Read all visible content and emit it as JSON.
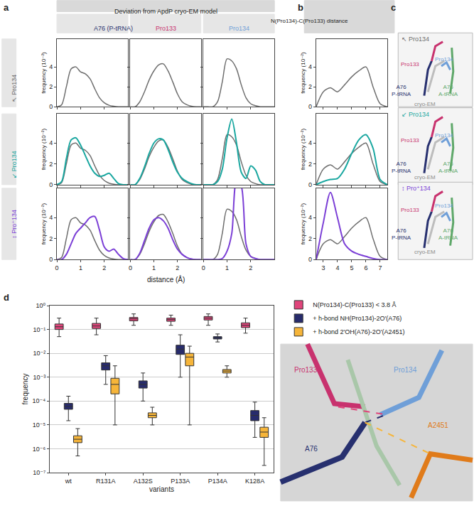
{
  "chart_data": [
    {
      "type": "line",
      "label": "a",
      "title": "Deviation from ApdP cryo-EM model",
      "x_label": "distance (Å)",
      "y_label": "frequency (10⁻²)",
      "xlim": [
        0,
        3
      ],
      "xticks": [
        0,
        1,
        2
      ],
      "ylim": [
        0,
        6.8
      ],
      "yticks": [
        0,
        2,
        4
      ],
      "rows": [
        {
          "label": "↖ Pro134",
          "color": "#6e6e6e"
        },
        {
          "label": "↙ Pro134",
          "color": "#1aa7a0"
        },
        {
          "label": "↕ Pro⁺134",
          "color": "#7b3fd6"
        }
      ],
      "x": [
        0,
        0.2,
        0.4,
        0.6,
        0.8,
        1.0,
        1.2,
        1.4,
        1.6,
        1.8,
        2.0,
        2.2,
        2.4,
        2.6,
        2.8,
        3.0
      ],
      "columns": [
        {
          "title": "A76 (P-tRNA)",
          "color": "#27306f",
          "series": [
            {
              "values": [
                0,
                0.2,
                2.0,
                3.8,
                4.0,
                3.5,
                3.3,
                2.8,
                1.8,
                0.9,
                0.4,
                0.15,
                0.05,
                0,
                0,
                0
              ]
            },
            {
              "values": [
                0,
                0.3,
                2.5,
                4.3,
                4.5,
                3.8,
                2.8,
                1.8,
                1.1,
                0.8,
                0.9,
                1.1,
                0.6,
                0.1,
                0,
                0
              ]
            },
            {
              "values": [
                0,
                0,
                0.5,
                1.5,
                2.5,
                3.0,
                3.5,
                4.0,
                4.1,
                2.8,
                1.2,
                0.8,
                1.0,
                0.5,
                0.1,
                0
              ]
            }
          ]
        },
        {
          "title": "Pro133",
          "color": "#c8326e",
          "series": [
            {
              "values": [
                0,
                0,
                0.5,
                1.5,
                2.7,
                3.6,
                4.2,
                4.3,
                3.6,
                2.5,
                1.3,
                0.5,
                0.2,
                0.05,
                0,
                0
              ]
            },
            {
              "values": [
                0,
                0,
                0.6,
                1.7,
                3.0,
                4.0,
                4.4,
                4.3,
                3.4,
                2.2,
                1.2,
                0.6,
                0.3,
                0.1,
                0,
                0
              ]
            },
            {
              "values": [
                0,
                0,
                0.6,
                1.8,
                3.0,
                3.8,
                4.0,
                3.7,
                3.0,
                1.9,
                1.0,
                0.5,
                0.2,
                0.05,
                0,
                0
              ]
            }
          ]
        },
        {
          "title": "Pro134",
          "color": "#6f9fd8",
          "series": [
            {
              "values": [
                0,
                0,
                0,
                0.5,
                2.5,
                4.8,
                4.6,
                3.8,
                2.2,
                0.9,
                0.3,
                0.1,
                0,
                0,
                0,
                0
              ]
            },
            {
              "values": [
                0,
                0,
                0,
                0.3,
                1.5,
                4.5,
                6.3,
                4.0,
                1.2,
                0.6,
                1.8,
                1.4,
                0.3,
                0,
                0,
                0
              ]
            },
            {
              "values": [
                0,
                0,
                0,
                0,
                0.1,
                0.8,
                2.5,
                7.5,
                7.0,
                1.5,
                0.3,
                0.1,
                0,
                0,
                0,
                0
              ]
            }
          ]
        }
      ]
    },
    {
      "type": "line",
      "label": "b",
      "title": "N(Pro134)-C(Pro133) distance",
      "y_label": "frequency (10⁻²)",
      "xlim": [
        2.5,
        7.5
      ],
      "xticks": [
        3,
        4,
        5,
        6,
        7
      ],
      "ylim": [
        0,
        6.8
      ],
      "yticks": [
        0,
        2,
        4
      ],
      "x": [
        2.5,
        3,
        3.5,
        4,
        4.5,
        5,
        5.5,
        6,
        6.5,
        7,
        7.5
      ],
      "series": [
        {
          "color": "#6e6e6e",
          "values": [
            0,
            1.5,
            1.9,
            1.5,
            2.2,
            3.0,
            3.6,
            4.0,
            2.0,
            0.3,
            0
          ]
        },
        {
          "color": "#1aa7a0",
          "values": [
            0,
            0.3,
            0.5,
            0.6,
            1.5,
            3.0,
            4.3,
            4.8,
            3.5,
            0.5,
            0
          ]
        },
        {
          "color": "#7b3fd6",
          "values": [
            0,
            3.5,
            6.4,
            4.0,
            1.5,
            0.8,
            0.5,
            0.3,
            0.1,
            0,
            0
          ]
        }
      ]
    },
    {
      "type": "box",
      "label": "d",
      "x_label": "variants",
      "y_label": "frequency",
      "categories": [
        "wt",
        "R131A",
        "A132S",
        "P133A",
        "P134A",
        "K128A"
      ],
      "log": "y",
      "grid": true,
      "legend": "right",
      "ylim": [
        1e-07,
        1
      ],
      "yticks": [
        {
          "value": 1e-07,
          "label": "10⁻⁷"
        },
        {
          "value": 1e-06,
          "label": "10⁻⁶"
        },
        {
          "value": 1e-05,
          "label": "10⁻⁵"
        },
        {
          "value": 0.0001,
          "label": "10⁻⁴"
        },
        {
          "value": 0.001,
          "label": "10⁻³"
        },
        {
          "value": 0.01,
          "label": "10⁻²"
        },
        {
          "value": 0.1,
          "label": "10⁻¹"
        },
        {
          "value": 1,
          "label": "10⁰"
        }
      ],
      "series": [
        {
          "name": "N(Pro134)-C(Pro133) < 3.8 Å",
          "color": "#e0457b",
          "median": [
            0.13,
            0.14,
            0.28,
            0.26,
            0.3,
            0.15
          ],
          "q1": [
            0.1,
            0.11,
            0.23,
            0.22,
            0.25,
            0.12
          ],
          "q3": [
            0.17,
            0.18,
            0.32,
            0.3,
            0.35,
            0.19
          ],
          "lower": [
            0.05,
            0.06,
            0.15,
            0.15,
            0.15,
            0.07
          ],
          "upper": [
            0.3,
            0.3,
            0.45,
            0.4,
            0.45,
            0.3
          ]
        },
        {
          "name": "+ h-bond NH(Pro134)-2O'(A76)",
          "color": "#272b6c",
          "median": [
            6e-05,
            0.003,
            0.0005,
            0.015,
            0.045,
            2.5e-05
          ],
          "q1": [
            4.5e-05,
            0.002,
            0.00035,
            0.009,
            0.04,
            1.5e-05
          ],
          "q3": [
            8e-05,
            0.004,
            0.0007,
            0.022,
            0.05,
            4e-05
          ],
          "lower": [
            1.5e-05,
            0.0005,
            0.0001,
            0.001,
            0.03,
            3e-06
          ],
          "upper": [
            0.00016,
            0.008,
            0.0015,
            0.06,
            0.065,
            9e-05
          ]
        },
        {
          "name": "+ h-bond 2'OH(A76)-2O'(A2451)",
          "color": "#f6b53a",
          "median": [
            2.5e-06,
            0.0005,
            2.5e-05,
            0.007,
            0.0018,
            5e-06
          ],
          "q1": [
            1.8e-06,
            0.0002,
            2e-05,
            0.003,
            0.0015,
            3e-06
          ],
          "q3": [
            3.5e-06,
            0.0009,
            3.2e-05,
            0.01,
            0.0021,
            8e-06
          ],
          "lower": [
            5e-07,
            1e-05,
            1e-05,
            1e-05,
            0.001,
            2e-07
          ],
          "upper": [
            7e-06,
            0.003,
            5.5e-05,
            0.02,
            0.003,
            2e-05
          ]
        }
      ]
    }
  ],
  "diagram_c": {
    "label": "c",
    "panels": [
      {
        "title": "↖ Pro134",
        "title_color": "#6e6e6e"
      },
      {
        "title": "↙ Pro134",
        "title_color": "#1aa7a0"
      },
      {
        "title": "↕ Pro⁺134",
        "title_color": "#7b3fd6"
      }
    ],
    "labels": [
      {
        "lines": [
          "Pro133"
        ],
        "color": "#c8326e"
      },
      {
        "lines": [
          "Pro134"
        ],
        "color": "#6f9fd8"
      },
      {
        "lines": [
          "A76",
          "P-tRNA"
        ],
        "color": "#27306f"
      },
      {
        "lines": [
          "A76",
          "A-tRNA"
        ],
        "color": "#5fa86a"
      },
      {
        "lines": [
          "cryo-EM"
        ],
        "color": "#8a8a8a"
      }
    ]
  },
  "structure_d": {
    "labels": [
      {
        "text": "Pro133",
        "color": "#c8326e"
      },
      {
        "text": "Pro134",
        "color": "#6f9fd8"
      },
      {
        "text": "A2451",
        "color": "#e07b1a"
      },
      {
        "text": "A76",
        "color": "#27306f"
      }
    ]
  }
}
